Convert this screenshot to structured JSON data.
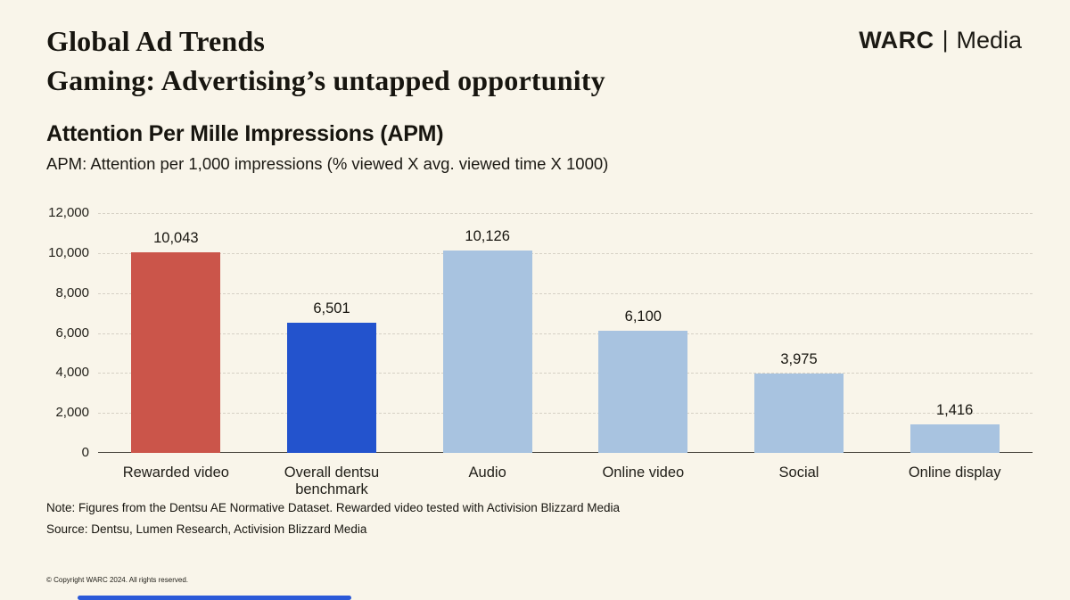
{
  "slide": {
    "title_line1": "Global Ad Trends",
    "title_line2": "Gaming: Advertising’s untapped opportunity",
    "brand": {
      "name": "WARC",
      "divider": "|",
      "suffix": "Media"
    },
    "note": "Note: Figures from the Dentsu AE Normative Dataset. Rewarded video tested with Activision Blizzard Media",
    "source": "Source: Dentsu, Lumen Research, Activision Blizzard Media",
    "copyright": "© Copyright WARC 2024. All rights reserved."
  },
  "colors": {
    "background": "#f9f5ea",
    "text": "#17150f",
    "gridline": "#d6d1c5",
    "axis_line": "#4a473f",
    "highlight_red": "#cb554a",
    "benchmark_blue": "#2353cd",
    "default_light_blue": "#a8c3e0",
    "footer_bar_blue": "#2b59d8"
  },
  "chart_data": {
    "type": "bar",
    "title": "Attention Per Mille Impressions (APM)",
    "subtitle": "APM: Attention per 1,000 impressions (% viewed X avg. viewed time X 1000)",
    "categories": [
      "Rewarded video",
      "Overall dentsu benchmark",
      "Audio",
      "Online video",
      "Social",
      "Online display"
    ],
    "values": [
      10043,
      6501,
      10126,
      6100,
      3975,
      1416
    ],
    "value_labels": [
      "10,043",
      "6,501",
      "10,126",
      "6,100",
      "3,975",
      "1,416"
    ],
    "bar_colors": [
      "#cb554a",
      "#2353cd",
      "#a8c3e0",
      "#a8c3e0",
      "#a8c3e0",
      "#a8c3e0"
    ],
    "xlabel": "",
    "ylabel": "",
    "ylim": [
      0,
      12000
    ],
    "ytick_step": 2000,
    "ytick_labels": [
      "0",
      "2,000",
      "4,000",
      "6,000",
      "8,000",
      "10,000",
      "12,000"
    ],
    "grid": "horizontal-dashed",
    "legend": "none"
  }
}
